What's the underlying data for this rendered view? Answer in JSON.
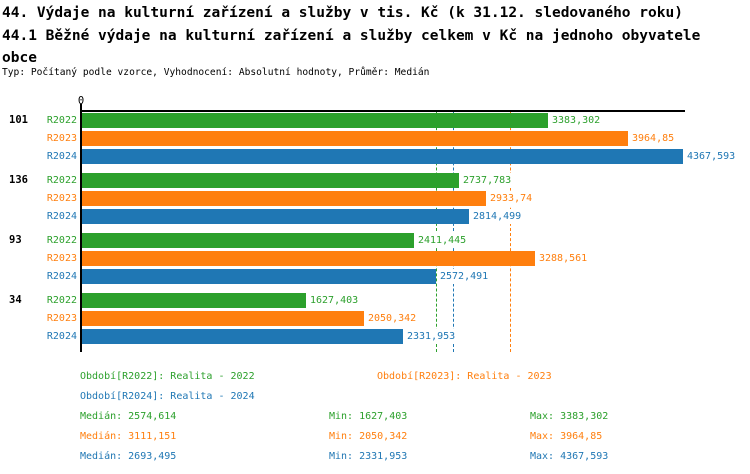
{
  "header": {
    "title_line1": "44. Výdaje na kulturní zařízení a služby v tis. Kč (k 31.12. sledovaného roku)",
    "title_line2": "44.1 Běžné výdaje na kulturní zařízení a služby celkem v Kč na jednoho obyvatele obce",
    "type_line": "Typ: Počítaný podle vzorce, Vyhodnocení: Absolutní hodnoty, Průměr: Medián"
  },
  "chart_data": {
    "type": "bar",
    "orientation": "horizontal",
    "origin_tick_label": "0",
    "xlim": [
      0,
      4367.593
    ],
    "grid": false,
    "categories": [
      "101",
      "136",
      "93",
      "34"
    ],
    "series": [
      {
        "name": "R2022",
        "color": "#2ca02c",
        "values": [
          3383.302,
          2737.783,
          2411.445,
          1627.403
        ],
        "value_labels": [
          "3383,302",
          "2737,783",
          "2411,445",
          "1627,403"
        ]
      },
      {
        "name": "R2023",
        "color": "#ff7f0e",
        "values": [
          3964.85,
          2933.74,
          3288.561,
          2050.342
        ],
        "value_labels": [
          "3964,85",
          "2933,74",
          "3288,561",
          "2050,342"
        ]
      },
      {
        "name": "R2024",
        "color": "#1f77b4",
        "values": [
          4367.593,
          2814.499,
          2572.491,
          2331.953
        ],
        "value_labels": [
          "4367,593",
          "2814,499",
          "2572,491",
          "2331,953"
        ]
      }
    ],
    "median_lines": [
      {
        "series": "R2022",
        "value": 2574.614,
        "color": "#2ca02c"
      },
      {
        "series": "R2023",
        "value": 3111.151,
        "color": "#ff7f0e"
      },
      {
        "series": "R2024",
        "value": 2693.495,
        "color": "#1f77b4"
      }
    ]
  },
  "legend": {
    "periods": [
      {
        "id": "R2022",
        "label": "Období[R2022]: Realita - 2022",
        "color": "#2ca02c"
      },
      {
        "id": "R2023",
        "label": "Období[R2023]: Realita - 2023",
        "color": "#ff7f0e"
      },
      {
        "id": "R2024",
        "label": "Období[R2024]: Realita - 2024",
        "color": "#1f77b4"
      }
    ],
    "stats": [
      {
        "series": "R2022",
        "color": "#2ca02c",
        "median": "Medián: 2574,614",
        "min": "Min: 1627,403",
        "max": "Max: 3383,302"
      },
      {
        "series": "R2023",
        "color": "#ff7f0e",
        "median": "Medián: 3111,151",
        "min": "Min: 2050,342",
        "max": "Max: 3964,85"
      },
      {
        "series": "R2024",
        "color": "#1f77b4",
        "median": "Medián: 2693,495",
        "min": "Min: 2331,953",
        "max": "Max: 4367,593"
      }
    ]
  }
}
